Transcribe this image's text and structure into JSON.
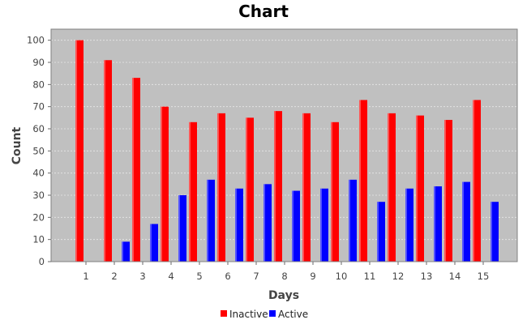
{
  "chart_data": {
    "type": "bar",
    "title": "Chart",
    "xlabel": "Days",
    "ylabel": "Count",
    "ylim": [
      0,
      105
    ],
    "yticks": [
      0,
      10,
      20,
      30,
      40,
      50,
      60,
      70,
      80,
      90,
      100
    ],
    "categories": [
      "1",
      "2",
      "3",
      "4",
      "5",
      "6",
      "7",
      "8",
      "9",
      "10",
      "11",
      "12",
      "13",
      "14",
      "15"
    ],
    "series": [
      {
        "name": "Inactive",
        "color": "#ff0000",
        "values": [
          100,
          91,
          83,
          70,
          63,
          67,
          65,
          68,
          67,
          63,
          73,
          67,
          66,
          64,
          73
        ]
      },
      {
        "name": "Active",
        "color": "#0000ff",
        "values": [
          null,
          9,
          17,
          30,
          37,
          33,
          35,
          32,
          33,
          37,
          27,
          33,
          34,
          36,
          27
        ]
      }
    ],
    "grid": true,
    "legend": "bottom-center",
    "plot_background": "#c0c0c0",
    "grid_color": "#e8e8e8"
  }
}
